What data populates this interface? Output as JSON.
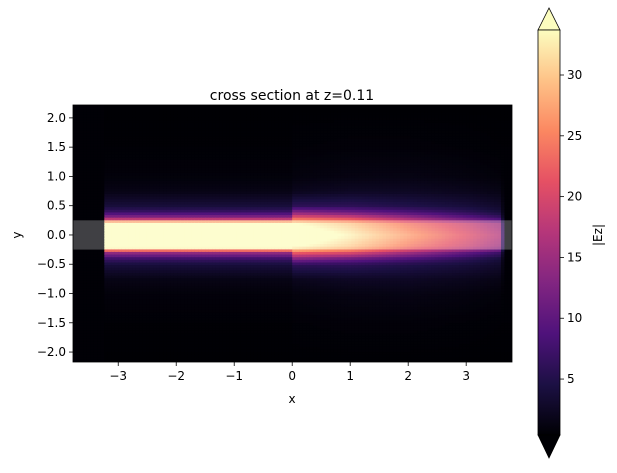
{
  "chart_data": {
    "type": "heatmap",
    "title": "cross section at z=0.11",
    "xlabel": "x",
    "ylabel": "y",
    "xlim": [
      -3.78,
      3.79
    ],
    "ylim": [
      -2.2,
      2.2
    ],
    "xticks": [
      "−3",
      "−2",
      "−1",
      "0",
      "1",
      "2",
      "3"
    ],
    "xtick_values": [
      -3,
      -2,
      -1,
      0,
      1,
      2,
      3
    ],
    "yticks": [
      "−2.0",
      "−1.5",
      "−1.0",
      "−0.5",
      "0.0",
      "0.5",
      "1.0",
      "1.5",
      "2.0"
    ],
    "ytick_values": [
      -2.0,
      -1.5,
      -1.0,
      -0.5,
      0.0,
      0.5,
      1.0,
      1.5,
      2.0
    ],
    "colormap": "magma",
    "colorbar": {
      "label": "|Ez|",
      "range": [
        0.4,
        33.7
      ],
      "ticks": [
        "5",
        "10",
        "15",
        "20",
        "25",
        "30"
      ],
      "tick_values": [
        5,
        10,
        15,
        20,
        25,
        30
      ],
      "extend": "both"
    },
    "field_profile": {
      "note_symmetric_in_y": true,
      "y_samples": [
        0,
        0.2,
        0.3,
        0.4,
        0.5,
        0.75,
        1.0,
        1.5,
        2.2
      ],
      "x_samples": [
        -3.78,
        -3.26,
        -3.25,
        -1.5,
        -0.01,
        0.0,
        1.0,
        2.0,
        3.0,
        3.6,
        3.65,
        3.79
      ],
      "values": [
        [
          0.5,
          0.5,
          0.5,
          0.5,
          0.5,
          0.5,
          0.5,
          0.5,
          0.5
        ],
        [
          0.5,
          0.5,
          0.5,
          0.5,
          0.5,
          0.5,
          0.5,
          0.5,
          0.5
        ],
        [
          40,
          36,
          14,
          7,
          4,
          1.5,
          0.8,
          0.5,
          0.4
        ],
        [
          40,
          36,
          14,
          7,
          4,
          1.5,
          0.8,
          0.5,
          0.4
        ],
        [
          40,
          36,
          14,
          7,
          4,
          1.5,
          0.8,
          0.5,
          0.4
        ],
        [
          38,
          34,
          22,
          13,
          6,
          2,
          1,
          0.6,
          0.4
        ],
        [
          33,
          30,
          20,
          11,
          6,
          2.5,
          1.3,
          0.7,
          0.4
        ],
        [
          27,
          24,
          15,
          8.5,
          5,
          2.5,
          1.4,
          0.7,
          0.4
        ],
        [
          21,
          19,
          10,
          6,
          4,
          2,
          1.1,
          0.6,
          0.4
        ],
        [
          17,
          15,
          7,
          4,
          3,
          1.5,
          0.8,
          0.5,
          0.4
        ],
        [
          0.5,
          0.5,
          0.5,
          0.5,
          0.5,
          0.5,
          0.5,
          0.5,
          0.4
        ],
        [
          0.5,
          0.5,
          0.5,
          0.5,
          0.5,
          0.5,
          0.5,
          0.5,
          0.4
        ]
      ]
    },
    "waveguide_overlay": {
      "y_range": [
        -0.25,
        0.25
      ],
      "color": "#ffffff",
      "opacity": 0.25
    },
    "magma_stops": [
      "#000004",
      "#1c1044",
      "#4f127b",
      "#812581",
      "#b5367a",
      "#e55064",
      "#fb8761",
      "#fec287",
      "#fcfdbf"
    ]
  }
}
